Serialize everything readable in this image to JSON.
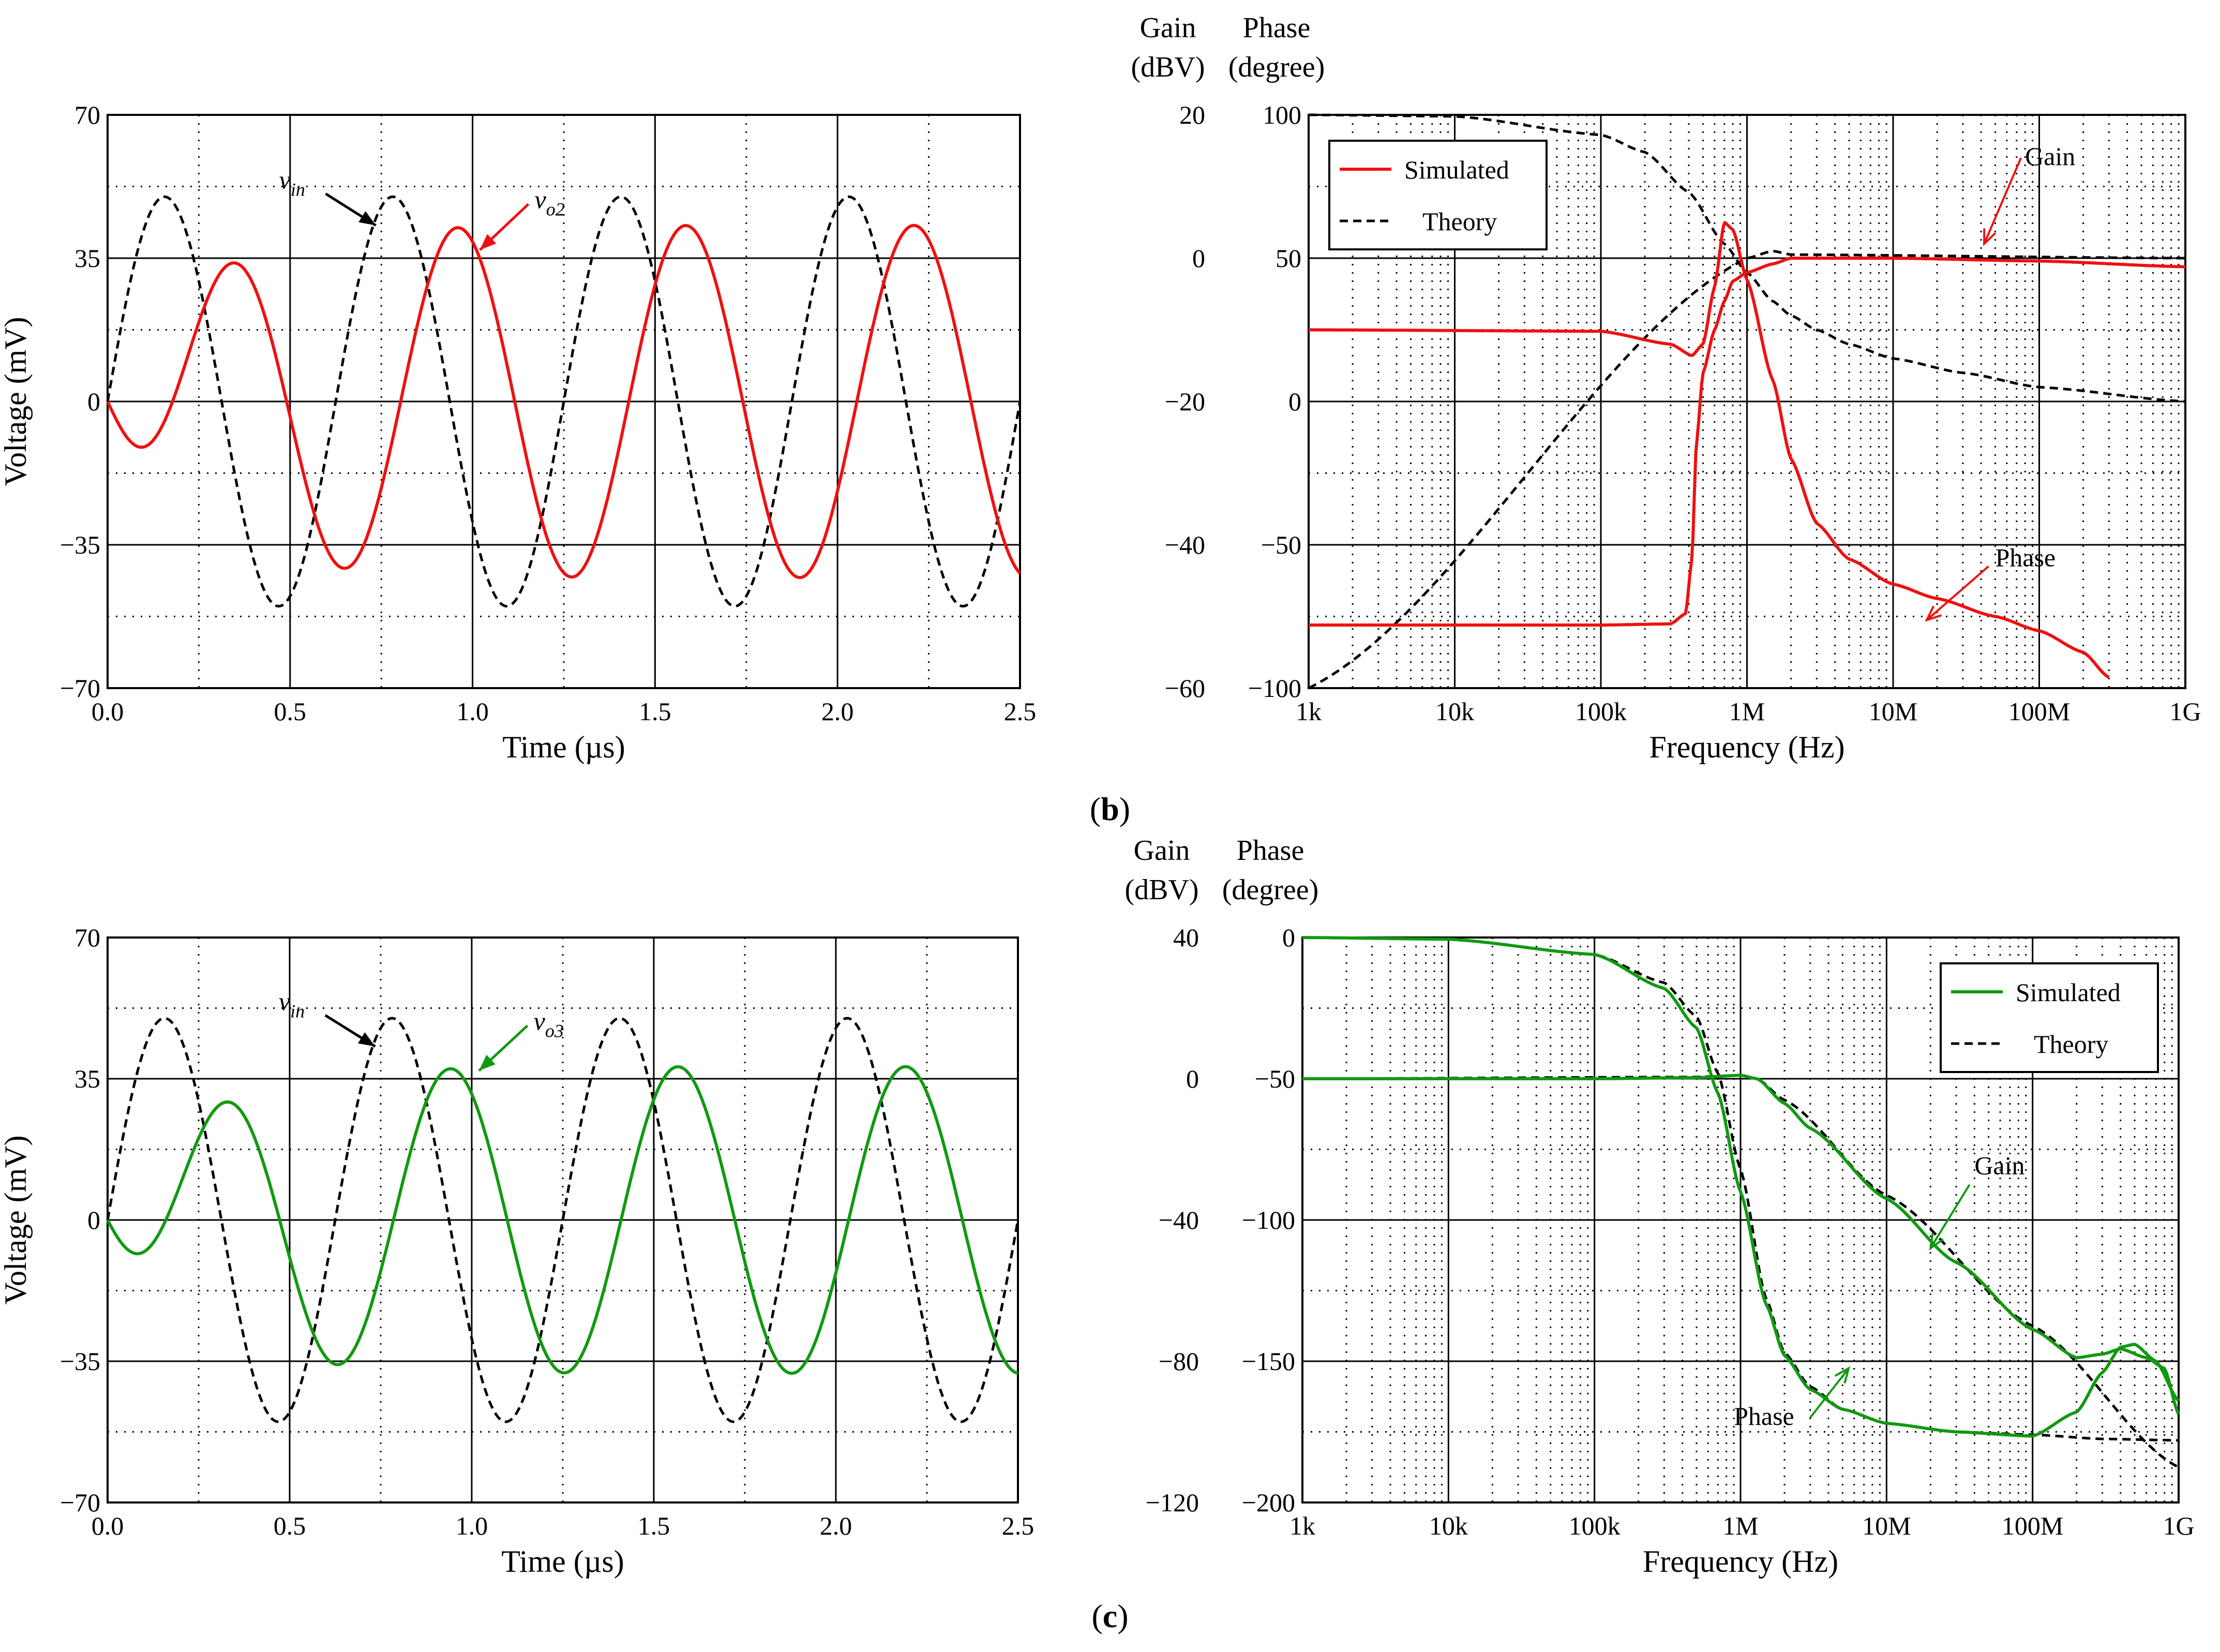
{
  "chart_data": [
    {
      "id": "b-time",
      "type": "line",
      "panel": "b",
      "xlabel": "Time (µs)",
      "ylabel": "Voltage (mV)",
      "xlim": [
        0,
        2.5
      ],
      "ylim": [
        -70,
        70
      ],
      "x_ticks": [
        "0.0",
        "0.5",
        "1.0",
        "1.5",
        "2.0",
        "2.5"
      ],
      "y_ticks": [
        "70",
        "35",
        "0",
        "−35",
        "−70"
      ],
      "series": [
        {
          "name": "vin",
          "label": "v",
          "label_sub": "in",
          "style": "dashed",
          "color": "#000000",
          "amplitude_mV": 50,
          "period_us": 0.625,
          "phase_deg": 0
        },
        {
          "name": "vo2",
          "label": "v",
          "label_sub": "o2",
          "style": "solid",
          "color": "#ee1111",
          "amplitude_mV": 43,
          "period_us": 0.625,
          "delay_us": 0.178
        }
      ]
    },
    {
      "id": "b-freq",
      "type": "line",
      "panel": "b",
      "xlabel": "Frequency (Hz)",
      "x_scale": "log",
      "xlim": [
        1000,
        1000000000
      ],
      "x_ticks": [
        "1k",
        "10k",
        "100k",
        "1M",
        "10M",
        "100M",
        "1G"
      ],
      "left_axis": {
        "header": [
          "Gain",
          "(dBV)"
        ],
        "ylim": [
          -60,
          20
        ],
        "ticks": [
          "20",
          "0",
          "−20",
          "−40",
          "−60"
        ]
      },
      "right_axis": {
        "header": [
          "Phase",
          "(degree)"
        ],
        "ylim": [
          -100,
          100
        ],
        "ticks": [
          "100",
          "50",
          "0",
          "−50",
          "−100"
        ]
      },
      "legend": {
        "position": "top-left",
        "entries": [
          "Simulated",
          "Theory"
        ]
      },
      "annotations": [
        "Gain",
        "Phase"
      ],
      "color": "#ee1111",
      "gain_sim": [
        [
          1000,
          -10
        ],
        [
          100000,
          -10.2
        ],
        [
          300000,
          -12
        ],
        [
          420000,
          -13.6
        ],
        [
          500000,
          -12
        ],
        [
          600000,
          -4
        ],
        [
          700000,
          5
        ],
        [
          800000,
          4
        ],
        [
          1000000,
          -3
        ],
        [
          1500000,
          -17
        ],
        [
          2000000,
          -28
        ],
        [
          3000000,
          -37
        ],
        [
          5000000,
          -42
        ],
        [
          10000000,
          -45.5
        ],
        [
          20000000,
          -47.5
        ],
        [
          50000000,
          -50
        ],
        [
          100000000,
          -52
        ],
        [
          200000000,
          -55
        ],
        [
          300000000,
          -58.5
        ]
      ],
      "gain_th": [
        [
          1000,
          -60
        ],
        [
          1000000,
          0
        ],
        [
          1500000,
          1
        ],
        [
          2000000,
          0.5
        ],
        [
          1000000000,
          0
        ]
      ],
      "phase_sim": [
        [
          1000,
          -78
        ],
        [
          100000,
          -78
        ],
        [
          300000,
          -77.6
        ],
        [
          380000,
          -74
        ],
        [
          420000,
          -55
        ],
        [
          450000,
          -15
        ],
        [
          500000,
          10
        ],
        [
          600000,
          25
        ],
        [
          700000,
          35
        ],
        [
          800000,
          42
        ],
        [
          1000000,
          45
        ],
        [
          1500000,
          48
        ],
        [
          2000000,
          50
        ],
        [
          10000000,
          50
        ],
        [
          100000000,
          49
        ],
        [
          1000000000,
          47
        ]
      ],
      "phase_th": [
        [
          1000,
          100
        ],
        [
          10000,
          99.5
        ],
        [
          100000,
          93
        ],
        [
          200000,
          87
        ],
        [
          400000,
          73
        ],
        [
          700000,
          55
        ],
        [
          1000000,
          45
        ],
        [
          1500000,
          35
        ],
        [
          2000000,
          30
        ],
        [
          3000000,
          25
        ],
        [
          5000000,
          20
        ],
        [
          10000000,
          15
        ],
        [
          30000000,
          10
        ],
        [
          100000000,
          5
        ],
        [
          1000000000,
          0
        ]
      ]
    },
    {
      "id": "c-time",
      "type": "line",
      "panel": "c",
      "xlabel": "Time (µs)",
      "ylabel": "Voltage (mV)",
      "xlim": [
        0,
        2.5
      ],
      "ylim": [
        -70,
        70
      ],
      "x_ticks": [
        "0.0",
        "0.5",
        "1.0",
        "1.5",
        "2.0",
        "2.5"
      ],
      "y_ticks": [
        "70",
        "35",
        "0",
        "−35",
        "−70"
      ],
      "series": [
        {
          "name": "vin",
          "label": "v",
          "label_sub": "in",
          "style": "dashed",
          "color": "#000000",
          "amplitude_mV": 50,
          "period_us": 0.625,
          "phase_deg": 0
        },
        {
          "name": "vo3",
          "label": "v",
          "label_sub": "o3",
          "style": "solid",
          "color": "#119911",
          "amplitude_mV": 38,
          "period_us": 0.625,
          "delay_us": 0.16
        }
      ]
    },
    {
      "id": "c-freq",
      "type": "line",
      "panel": "c",
      "xlabel": "Frequency (Hz)",
      "x_scale": "log",
      "xlim": [
        1000,
        1000000000
      ],
      "x_ticks": [
        "1k",
        "10k",
        "100k",
        "1M",
        "10M",
        "100M",
        "1G"
      ],
      "left_axis": {
        "header": [
          "Gain",
          "(dBV)"
        ],
        "ylim": [
          -120,
          40
        ],
        "ticks": [
          "40",
          "0",
          "−40",
          "−80",
          "−120"
        ]
      },
      "right_axis": {
        "header": [
          "Phase",
          "(degree)"
        ],
        "ylim": [
          -200,
          0
        ],
        "ticks": [
          "0",
          "−50",
          "−100",
          "−150",
          "−200"
        ]
      },
      "legend": {
        "position": "top-right",
        "entries": [
          "Simulated",
          "Theory"
        ]
      },
      "annotations": [
        "Gain",
        "Phase"
      ],
      "color": "#119911",
      "gain_sim": [
        [
          1000,
          0
        ],
        [
          100000,
          0
        ],
        [
          500000,
          0.3
        ],
        [
          1000000,
          1
        ],
        [
          1300000,
          0
        ],
        [
          2000000,
          -7
        ],
        [
          3000000,
          -14
        ],
        [
          10000000,
          -34
        ],
        [
          30000000,
          -52
        ],
        [
          100000000,
          -71
        ],
        [
          200000000,
          -79
        ],
        [
          300000000,
          -78
        ],
        [
          400000000,
          -76.5
        ],
        [
          600000000,
          -79
        ],
        [
          800000000,
          -82
        ],
        [
          1000000000,
          -95
        ]
      ],
      "gain_th": [
        [
          1000,
          0
        ],
        [
          500000,
          0.5
        ],
        [
          1000000,
          1
        ],
        [
          1300000,
          0
        ],
        [
          2000000,
          -6
        ],
        [
          10000000,
          -33
        ],
        [
          100000000,
          -70
        ],
        [
          1000000000,
          -110
        ]
      ],
      "phase_sim": [
        [
          1000,
          0
        ],
        [
          10000,
          -0.6
        ],
        [
          100000,
          -6
        ],
        [
          300000,
          -18
        ],
        [
          500000,
          -32
        ],
        [
          700000,
          -55
        ],
        [
          1000000,
          -90
        ],
        [
          1500000,
          -130
        ],
        [
          2000000,
          -148
        ],
        [
          3000000,
          -160
        ],
        [
          5000000,
          -167
        ],
        [
          10000000,
          -172
        ],
        [
          30000000,
          -175
        ],
        [
          100000000,
          -176.5
        ],
        [
          200000000,
          -168
        ],
        [
          300000000,
          -154
        ],
        [
          400000000,
          -145
        ],
        [
          500000000,
          -144
        ],
        [
          700000000,
          -150
        ],
        [
          1000000000,
          -164
        ]
      ],
      "phase_th": [
        [
          1000,
          0
        ],
        [
          10000,
          -0.6
        ],
        [
          100000,
          -6
        ],
        [
          300000,
          -16
        ],
        [
          500000,
          -28
        ],
        [
          700000,
          -48
        ],
        [
          1000000,
          -82
        ],
        [
          1500000,
          -128
        ],
        [
          2000000,
          -147
        ],
        [
          3000000,
          -159
        ],
        [
          5000000,
          -167
        ],
        [
          10000000,
          -172
        ],
        [
          30000000,
          -175
        ],
        [
          100000000,
          -176
        ],
        [
          300000000,
          -177.5
        ],
        [
          1000000000,
          -178
        ]
      ]
    }
  ],
  "captions": {
    "b": "(b)",
    "c": "(c)"
  },
  "annotation_labels": {
    "gain": "Gain",
    "phase": "Phase"
  },
  "legend_labels": {
    "simulated": "Simulated",
    "theory": "Theory"
  }
}
